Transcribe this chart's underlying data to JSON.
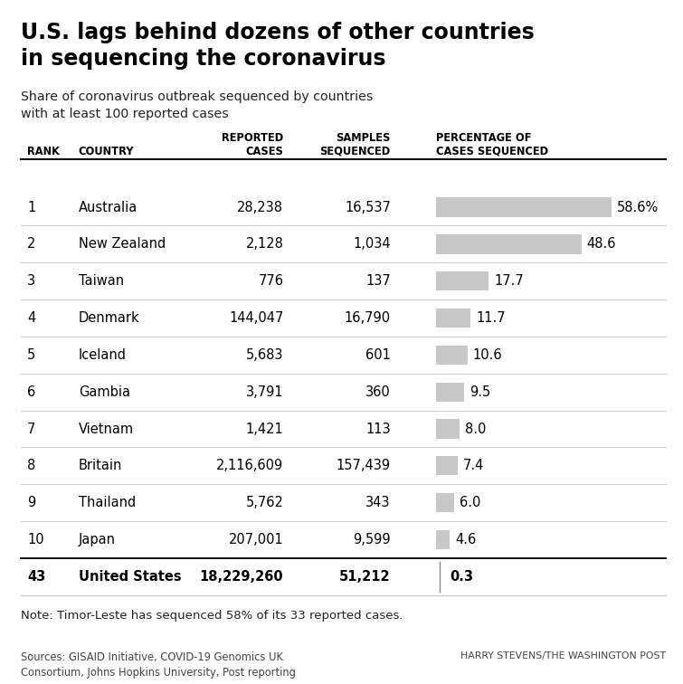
{
  "title": "U.S. lags behind dozens of other countries\nin sequencing the coronavirus",
  "subtitle": "Share of coronavirus outbreak sequenced by countries\nwith at least 100 reported cases",
  "rows": [
    {
      "rank": "1",
      "country": "Australia",
      "cases": "28,238",
      "sequenced": "16,537",
      "pct": 58.6,
      "pct_str": "58.6%"
    },
    {
      "rank": "2",
      "country": "New Zealand",
      "cases": "2,128",
      "sequenced": "1,034",
      "pct": 48.6,
      "pct_str": "48.6"
    },
    {
      "rank": "3",
      "country": "Taiwan",
      "cases": "776",
      "sequenced": "137",
      "pct": 17.7,
      "pct_str": "17.7"
    },
    {
      "rank": "4",
      "country": "Denmark",
      "cases": "144,047",
      "sequenced": "16,790",
      "pct": 11.7,
      "pct_str": "11.7"
    },
    {
      "rank": "5",
      "country": "Iceland",
      "cases": "5,683",
      "sequenced": "601",
      "pct": 10.6,
      "pct_str": "10.6"
    },
    {
      "rank": "6",
      "country": "Gambia",
      "cases": "3,791",
      "sequenced": "360",
      "pct": 9.5,
      "pct_str": "9.5"
    },
    {
      "rank": "7",
      "country": "Vietnam",
      "cases": "1,421",
      "sequenced": "113",
      "pct": 8.0,
      "pct_str": "8.0"
    },
    {
      "rank": "8",
      "country": "Britain",
      "cases": "2,116,609",
      "sequenced": "157,439",
      "pct": 7.4,
      "pct_str": "7.4"
    },
    {
      "rank": "9",
      "country": "Thailand",
      "cases": "5,762",
      "sequenced": "343",
      "pct": 6.0,
      "pct_str": "6.0"
    },
    {
      "rank": "10",
      "country": "Japan",
      "cases": "207,001",
      "sequenced": "9,599",
      "pct": 4.6,
      "pct_str": "4.6"
    }
  ],
  "footer_row": {
    "rank": "43",
    "country": "United States",
    "cases": "18,229,260",
    "sequenced": "51,212",
    "pct": 0.3,
    "pct_str": "0.3"
  },
  "note": "Note: Timor-Leste has sequenced 58% of its 33 reported cases.",
  "sources": "Sources: GISAID Initiative, COVID-19 Genomics UK\nConsortium, Johns Hopkins University, Post reporting",
  "credit": "HARRY STEVENS/THE WASHINGTON POST",
  "bar_color": "#c8c8c8",
  "bar_max_pct": 58.6,
  "background_color": "#ffffff",
  "text_color": "#000000",
  "divider_color": "#cccccc"
}
